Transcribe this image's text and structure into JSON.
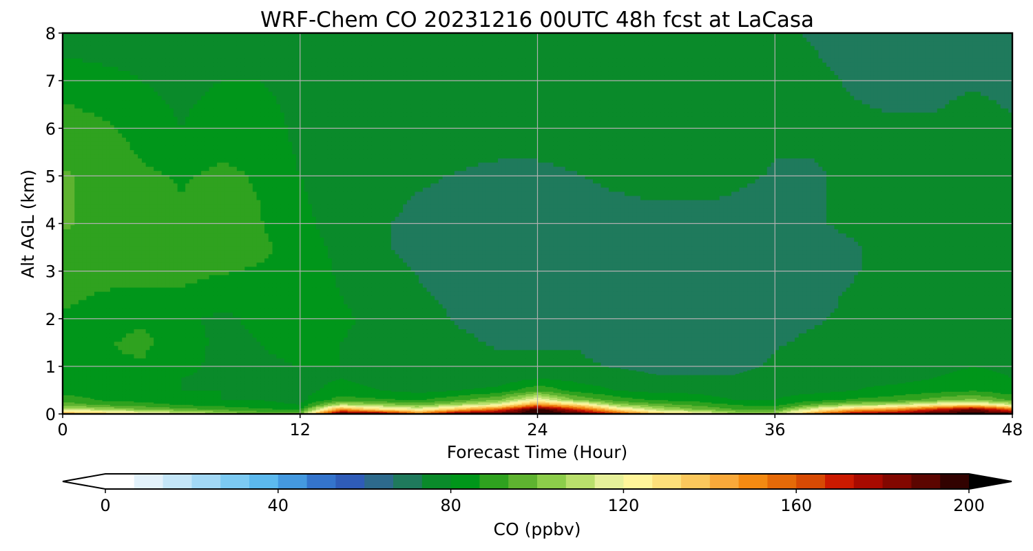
{
  "chart_data": {
    "type": "heatmap",
    "title": "WRF-Chem CO  20231216 00UTC 48h fcst at LaCasa",
    "xlabel": "Forecast Time (Hour)",
    "ylabel": "Alt AGL (km)",
    "xlim": [
      0,
      48
    ],
    "ylim": [
      0,
      8
    ],
    "xticks": [
      "0",
      "12",
      "24",
      "36",
      "48"
    ],
    "yticks": [
      "0",
      "1",
      "2",
      "3",
      "4",
      "5",
      "6",
      "7",
      "8"
    ],
    "grid": true,
    "colorbar": {
      "label": "CO  (ppbv)",
      "range": [
        0,
        200
      ],
      "ticks": [
        "0",
        "40",
        "80",
        "120",
        "160",
        "200"
      ],
      "extend": "both",
      "colors": [
        "#ffffff",
        "#e3f2fb",
        "#c4e6f8",
        "#a2d8f5",
        "#7ccaf2",
        "#5cb9ee",
        "#4499e0",
        "#3474cc",
        "#2f5cb8",
        "#2d6a8c",
        "#1f7a5c",
        "#0a8a2a",
        "#00961a",
        "#2fa21f",
        "#5eb330",
        "#8ccd4a",
        "#b9df6c",
        "#e6f09a",
        "#fff59a",
        "#fde07a",
        "#fbc85c",
        "#f9a93a",
        "#f48a12",
        "#e66a08",
        "#d84a04",
        "#cc1a00",
        "#a80a00",
        "#820700",
        "#5c0500",
        "#320200",
        "#000000"
      ],
      "over_color": "#000000",
      "under_color": "#ffffff"
    },
    "times_hour": [
      0,
      2,
      4,
      6,
      8,
      10,
      12,
      14,
      16,
      18,
      20,
      22,
      24,
      26,
      28,
      30,
      32,
      34,
      36,
      38,
      40,
      42,
      44,
      46,
      48
    ],
    "altitudes_km": [
      0,
      0.1,
      0.2,
      0.3,
      0.5,
      0.75,
      1,
      1.5,
      2,
      2.5,
      3,
      3.5,
      4,
      5,
      6,
      7,
      8
    ],
    "values_ppbv": [
      [
        150,
        140,
        130,
        120,
        110,
        100,
        100,
        200,
        200,
        160,
        200,
        200,
        200,
        200,
        170,
        140,
        130,
        110,
        110,
        150,
        190,
        190,
        200,
        200,
        200
      ],
      [
        112,
        108,
        100,
        96,
        92,
        88,
        86,
        150,
        130,
        120,
        140,
        160,
        200,
        170,
        130,
        110,
        100,
        94,
        92,
        120,
        140,
        150,
        170,
        190,
        160
      ],
      [
        98,
        92,
        90,
        86,
        84,
        82,
        80,
        110,
        104,
        98,
        108,
        118,
        150,
        130,
        104,
        96,
        92,
        86,
        84,
        96,
        106,
        110,
        122,
        130,
        112
      ],
      [
        90,
        86,
        84,
        82,
        80,
        80,
        78,
        90,
        88,
        86,
        92,
        100,
        120,
        100,
        90,
        86,
        84,
        80,
        80,
        84,
        88,
        90,
        96,
        102,
        92
      ],
      [
        84,
        84,
        82,
        80,
        80,
        78,
        78,
        82,
        80,
        78,
        80,
        82,
        92,
        84,
        80,
        78,
        78,
        76,
        78,
        78,
        80,
        82,
        84,
        86,
        82
      ],
      [
        82,
        84,
        84,
        80,
        78,
        78,
        78,
        80,
        78,
        76,
        76,
        76,
        80,
        78,
        76,
        74,
        74,
        74,
        76,
        76,
        78,
        78,
        80,
        82,
        80
      ],
      [
        84,
        86,
        86,
        82,
        78,
        78,
        80,
        80,
        78,
        76,
        75,
        74,
        74,
        74,
        73,
        72,
        72,
        72,
        74,
        75,
        76,
        77,
        78,
        80,
        79
      ],
      [
        84,
        86,
        88,
        84,
        78,
        80,
        84,
        80,
        77,
        75,
        74,
        73,
        73,
        73,
        72,
        71,
        70,
        71,
        73,
        74,
        75,
        76,
        77,
        78,
        78
      ],
      [
        86,
        84,
        86,
        82,
        78,
        82,
        86,
        82,
        77,
        75,
        73,
        72,
        72,
        72,
        72,
        71,
        70,
        71,
        72,
        73,
        74,
        76,
        77,
        77,
        77
      ],
      [
        88,
        86,
        86,
        86,
        84,
        84,
        86,
        80,
        76,
        74,
        72,
        70,
        70,
        70,
        70,
        70,
        70,
        70,
        70,
        72,
        74,
        76,
        78,
        77,
        76
      ],
      [
        90,
        89,
        88,
        88,
        87,
        86,
        85,
        79,
        75,
        73,
        71,
        70,
        69,
        69,
        69,
        69,
        70,
        70,
        70,
        71,
        73,
        75,
        77,
        77,
        76
      ],
      [
        92,
        91,
        90,
        89,
        90,
        88,
        84,
        78,
        74,
        72,
        71,
        70,
        69,
        69,
        69,
        70,
        70,
        70,
        71,
        72,
        73,
        75,
        77,
        77,
        76
      ],
      [
        94,
        92,
        90,
        88,
        90,
        87,
        82,
        77,
        74,
        72,
        71,
        71,
        70,
        70,
        70,
        71,
        71,
        72,
        72,
        73,
        74,
        75,
        76,
        77,
        76
      ],
      [
        94,
        92,
        88,
        86,
        88,
        86,
        80,
        76,
        75,
        74,
        73,
        72,
        72,
        73,
        75,
        76,
        76,
        74,
        73,
        73,
        74,
        75,
        75,
        76,
        75
      ],
      [
        90,
        88,
        84,
        80,
        84,
        84,
        78,
        76,
        76,
        76,
        76,
        76,
        76,
        77,
        78,
        78,
        77,
        76,
        74,
        74,
        74,
        74,
        74,
        75,
        74
      ],
      [
        84,
        82,
        80,
        78,
        80,
        80,
        77,
        77,
        78,
        78,
        77,
        77,
        77,
        78,
        79,
        78,
        77,
        76,
        75,
        74,
        73,
        72,
        72,
        73,
        72
      ],
      [
        76,
        76,
        77,
        76,
        77,
        77,
        77,
        77,
        78,
        79,
        78,
        77,
        77,
        77,
        78,
        77,
        76,
        75,
        74,
        73,
        72,
        71,
        71,
        72,
        72
      ]
    ]
  }
}
